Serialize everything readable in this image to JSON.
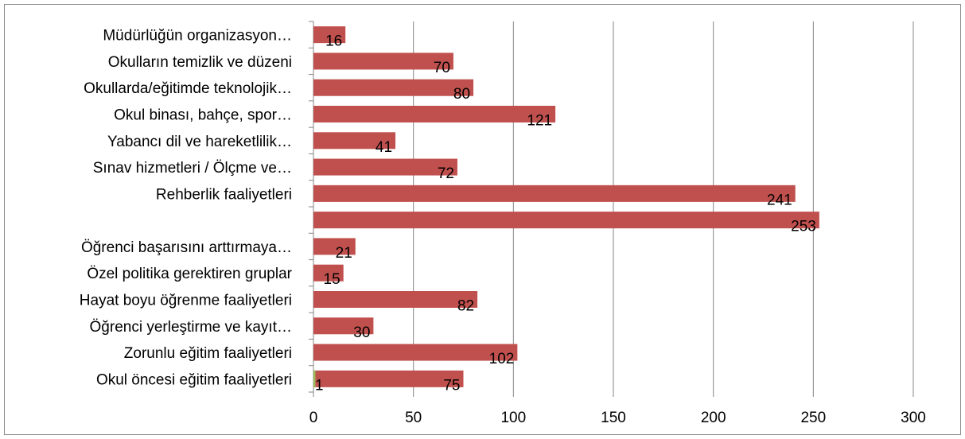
{
  "chart_data": {
    "type": "bar",
    "orientation": "horizontal",
    "categories": [
      "Müdürlüğün organizasyon…",
      "Okulların temizlik ve düzeni",
      "Okullarda/eğitimde teknolojik…",
      "Okul binası, bahçe, spor…",
      "Yabancı dil ve hareketlilik…",
      "Sınav hizmetleri / Ölçme ve…",
      "Rehberlik faaliyetleri",
      "",
      "Öğrenci başarısını arttırmaya…",
      "Özel politika gerektiren gruplar",
      "Hayat boyu öğrenme faaliyetleri",
      "Öğrenci yerleştirme ve kayıt…",
      "Zorunlu eğitim faaliyetleri",
      "Okul öncesi eğitim faaliyetleri"
    ],
    "series": [
      {
        "color": "#c0504d",
        "values": [
          16,
          70,
          80,
          121,
          41,
          72,
          241,
          253,
          21,
          15,
          82,
          30,
          102,
          75
        ]
      },
      {
        "color": "#9bbb59",
        "values": [
          null,
          null,
          null,
          null,
          null,
          null,
          null,
          null,
          null,
          null,
          null,
          null,
          null,
          1
        ]
      }
    ],
    "xlim": [
      0,
      300
    ],
    "xticks": [
      "0",
      "50",
      "100",
      "150",
      "200",
      "250",
      "300"
    ],
    "grid": true,
    "legend": "none",
    "title": "",
    "xlabel": "",
    "ylabel": ""
  }
}
